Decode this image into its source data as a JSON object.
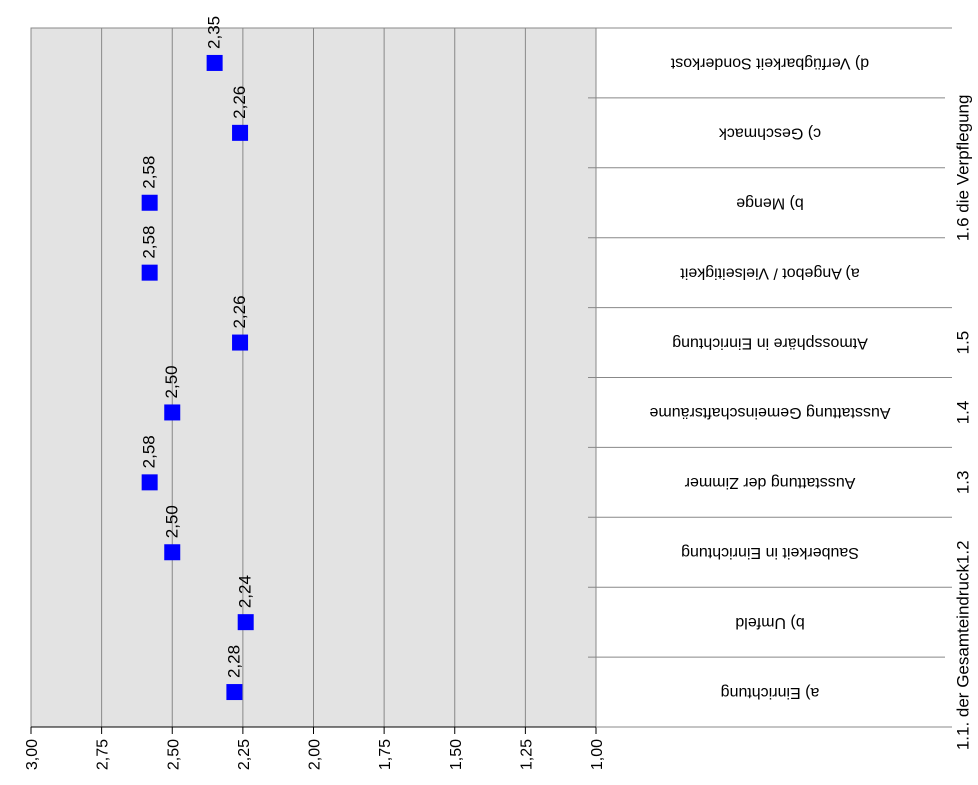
{
  "chart_data": {
    "type": "scatter",
    "orientation": "rotated",
    "title": "",
    "xlabel": "",
    "ylabel": "",
    "xlim": [
      1.0,
      3.0
    ],
    "x_ticks": [
      "1,00",
      "1,25",
      "1,50",
      "1,75",
      "2,00",
      "2,25",
      "2,50",
      "2,75",
      "3,00"
    ],
    "grid": true,
    "marker": "square",
    "colors": {
      "plot_bg": "#e3e3e3",
      "marker": "#0000ff",
      "grid": "#888888"
    },
    "categories": [
      "a) Einrichtung",
      "b) Umfeld",
      "Sauberkeit in Einrichtung",
      "Ausstattung der Zimmer",
      "Ausstattung Gemeinschaftsräume",
      "Atmossphäre in Einrichtung",
      "a) Angebot / Vielseitigkeit",
      "b) Menge",
      "c) Geschmack",
      "d) Verfügbarkeit Sonderkost"
    ],
    "groups": [
      {
        "label": "1.1. der Gesamteindruck",
        "span": [
          0,
          1
        ]
      },
      {
        "label": "1.2",
        "span": [
          2,
          2
        ]
      },
      {
        "label": "1.3",
        "span": [
          3,
          3
        ]
      },
      {
        "label": "1.4",
        "span": [
          4,
          4
        ]
      },
      {
        "label": "1.5",
        "span": [
          5,
          5
        ]
      },
      {
        "label": "1.6 die Verpflegung",
        "span": [
          6,
          9
        ]
      }
    ],
    "series": [
      {
        "values": [
          2.28,
          2.24,
          2.5,
          2.58,
          2.5,
          2.26,
          2.58,
          2.58,
          2.26,
          2.35
        ],
        "labels": [
          "2,28",
          "2,24",
          "2,50",
          "2,58",
          "2,50",
          "2,26",
          "2,58",
          "2,58",
          "2,26",
          "2,35"
        ]
      }
    ]
  }
}
